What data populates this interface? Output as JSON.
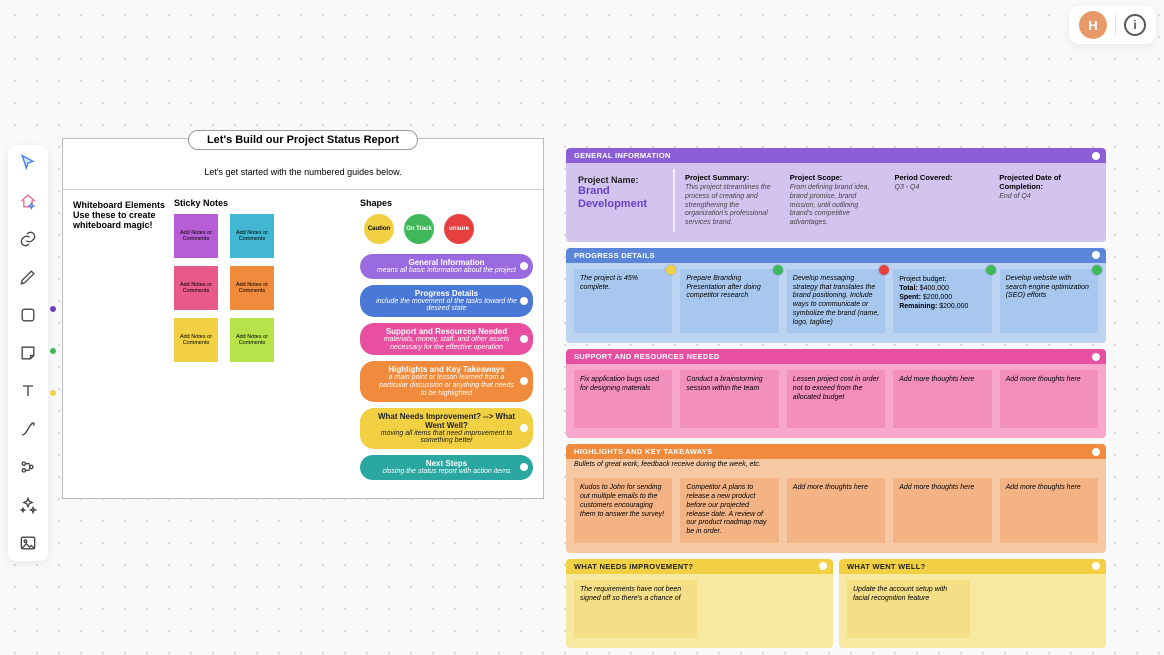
{
  "header": {
    "avatar_initial": "H"
  },
  "guide": {
    "title": "Let's Build our Project Status Report",
    "subtitle": "Let's get started with the numbered guides below.",
    "wb_label": "Whiteboard Elements Use these to create whiteboard magic!",
    "sticky_heading": "Sticky Notes",
    "shapes_heading": "Shapes",
    "sticky_placeholder": "Add Notes or Comments",
    "sticky_colors": [
      "#b75ed6",
      "#41b7d1",
      "#e85a8c",
      "#f08a3c",
      "#f2d043",
      "#b6e24a"
    ],
    "circles": [
      {
        "label": "Caution",
        "bg": "#f2d043",
        "fg": "#000"
      },
      {
        "label": "On Track",
        "bg": "#3fb859",
        "fg": "#fff"
      },
      {
        "label": "unsure",
        "bg": "#e63f3f",
        "fg": "#fff"
      }
    ],
    "pills": [
      {
        "title": "General Information",
        "desc": "means all basic information about the project",
        "bg": "#9a6be0",
        "fg": "#fff"
      },
      {
        "title": "Progress Details",
        "desc": "include the movement of the tasks toward the desired state",
        "bg": "#4a78d6",
        "fg": "#fff"
      },
      {
        "title": "Support and Resources Needed",
        "desc": "materials, money, staff, and other assets necessary for the effective operation",
        "bg": "#e84fa0",
        "fg": "#fff"
      },
      {
        "title": "Highlights and Key Takeaways",
        "desc": "a main point or lesson learned from a particular discussion or anything that needs to be highlighted",
        "bg": "#f08a3c",
        "fg": "#fff"
      },
      {
        "title": "What Needs Improvement? --> What Went Well?",
        "desc": "moving all items that need improvement to something better",
        "bg": "#f2d043",
        "fg": "#222"
      },
      {
        "title": "Next Steps",
        "desc": "closing the status report with action items",
        "bg": "#2aa7a0",
        "fg": "#fff"
      }
    ]
  },
  "report": {
    "general": {
      "head": "GENERAL INFORMATION",
      "head_bg": "#8b5ed6",
      "body_bg": "#d3c4ef",
      "name_label": "Project Name:",
      "name_value": "Brand Development",
      "cells": [
        {
          "t": "Project Summary:",
          "v": "This project streamlines the process of creating and strengthening the organization's professional services brand."
        },
        {
          "t": "Project Scope:",
          "v": "From defining brand idea, brand promise, brand mission, until outlining brand's competitive advantages."
        },
        {
          "t": "Period Covered:",
          "v": "Q3 - Q4"
        },
        {
          "t": "Projected Date of Completion:",
          "v": "End of Q4"
        }
      ]
    },
    "progress": {
      "head": "PROGRESS DETAILS",
      "head_bg": "#5a85d9",
      "body_bg": "#bcd3f2",
      "card_bg": "#a8c7ee",
      "cards": [
        {
          "text": "The project is 45% complete.",
          "dot": "#f2d043"
        },
        {
          "text": "Prepare Branding Presentation after doing competitor research",
          "dot": "#3fb859"
        },
        {
          "text": "Develop messaging strategy that translates the brand positioning. Include ways to communicate or symbolize the brand (name, logo, tagline)",
          "dot": "#e63f3f"
        },
        {
          "budget": {
            "l0": "Project budget:",
            "l1": "Total: $400,000",
            "l2": "Spent: $200,000",
            "l3": "Remaining: $200,000"
          },
          "dot": "#3fb859"
        },
        {
          "text": "Develop website with search engine optimization (SEO) efforts",
          "dot": "#3fb859"
        }
      ]
    },
    "support": {
      "head": "SUPPORT AND RESOURCES NEEDED",
      "head_bg": "#e84fa0",
      "body_bg": "#f7a6cc",
      "card_bg": "#f28fbd",
      "cards": [
        {
          "text": "Fix application bugs used for designing materials"
        },
        {
          "text": "Conduct a brainstorming session within the team"
        },
        {
          "text": "Lessen project cost in order not to exceed from the allocated budget"
        },
        {
          "text": "Add more thoughts here"
        },
        {
          "text": "Add more thoughts here"
        }
      ]
    },
    "highlights": {
      "head": "HIGHLIGHTS AND KEY TAKEAWAYS",
      "head_bg": "#f08a3c",
      "body_bg": "#f6c9a4",
      "card_bg": "#f4b385",
      "subtitle": "Bullets of great work, feedback receive during the week, etc.",
      "cards": [
        {
          "text": "Kudos to John for sending out multiple emails to the customers encouraging them to answer the survey!"
        },
        {
          "text": "Competitor A plans to release a new product before our projected release date. A review of our product roadmap may be in order."
        },
        {
          "text": "Add more thoughts here"
        },
        {
          "text": "Add more thoughts here"
        },
        {
          "text": "Add more thoughts here"
        }
      ]
    },
    "improve": {
      "head": "WHAT NEEDS IMPROVEMENT?",
      "head_bg": "#f2d043",
      "body_bg": "#f8e9a0",
      "card_bg": "#f4df87",
      "cards": [
        {
          "text": "The requirements have not been signed off so there's a chance of"
        }
      ]
    },
    "wentwell": {
      "head": "WHAT WENT WELL?",
      "head_bg": "#f2d043",
      "body_bg": "#f8e9a0",
      "card_bg": "#f4df87",
      "cards": [
        {
          "text": "Update the account setup with facial recognition feature"
        }
      ]
    }
  }
}
